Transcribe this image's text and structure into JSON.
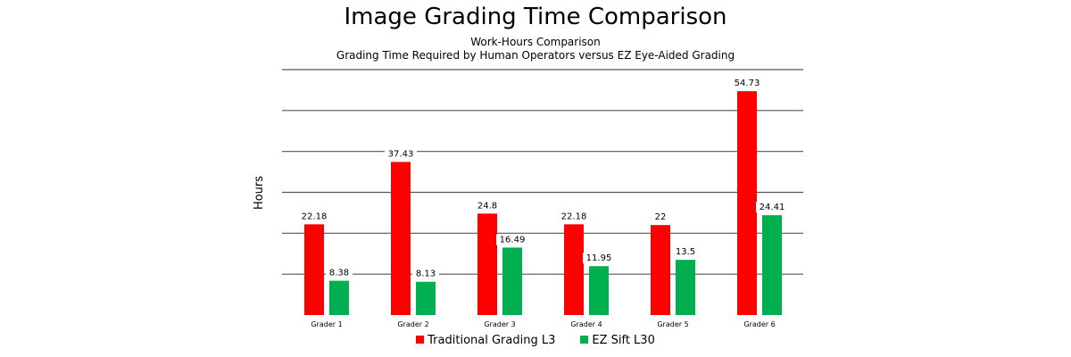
{
  "chart_data": {
    "type": "bar",
    "title": "Image Grading Time Comparison",
    "subtitle": [
      "Work-Hours Comparison",
      "Grading Time Required by Human Operators versus EZ Eye-Aided Grading"
    ],
    "xlabel": "",
    "ylabel": "Hours",
    "ylim": [
      0,
      60
    ],
    "grid": true,
    "legend_position": "bottom",
    "categories": [
      "Grader 1",
      "Grader 2",
      "Grader 3",
      "Grader 4",
      "Grader 5",
      "Grader 6"
    ],
    "series": [
      {
        "name": "Traditional Grading L3",
        "color": "#ff0000",
        "values": [
          22.18,
          37.43,
          24.8,
          22.18,
          22,
          54.73
        ]
      },
      {
        "name": "EZ Sift L30",
        "color": "#00b050",
        "values": [
          8.38,
          8.13,
          16.49,
          11.95,
          13.5,
          24.41
        ]
      }
    ]
  }
}
